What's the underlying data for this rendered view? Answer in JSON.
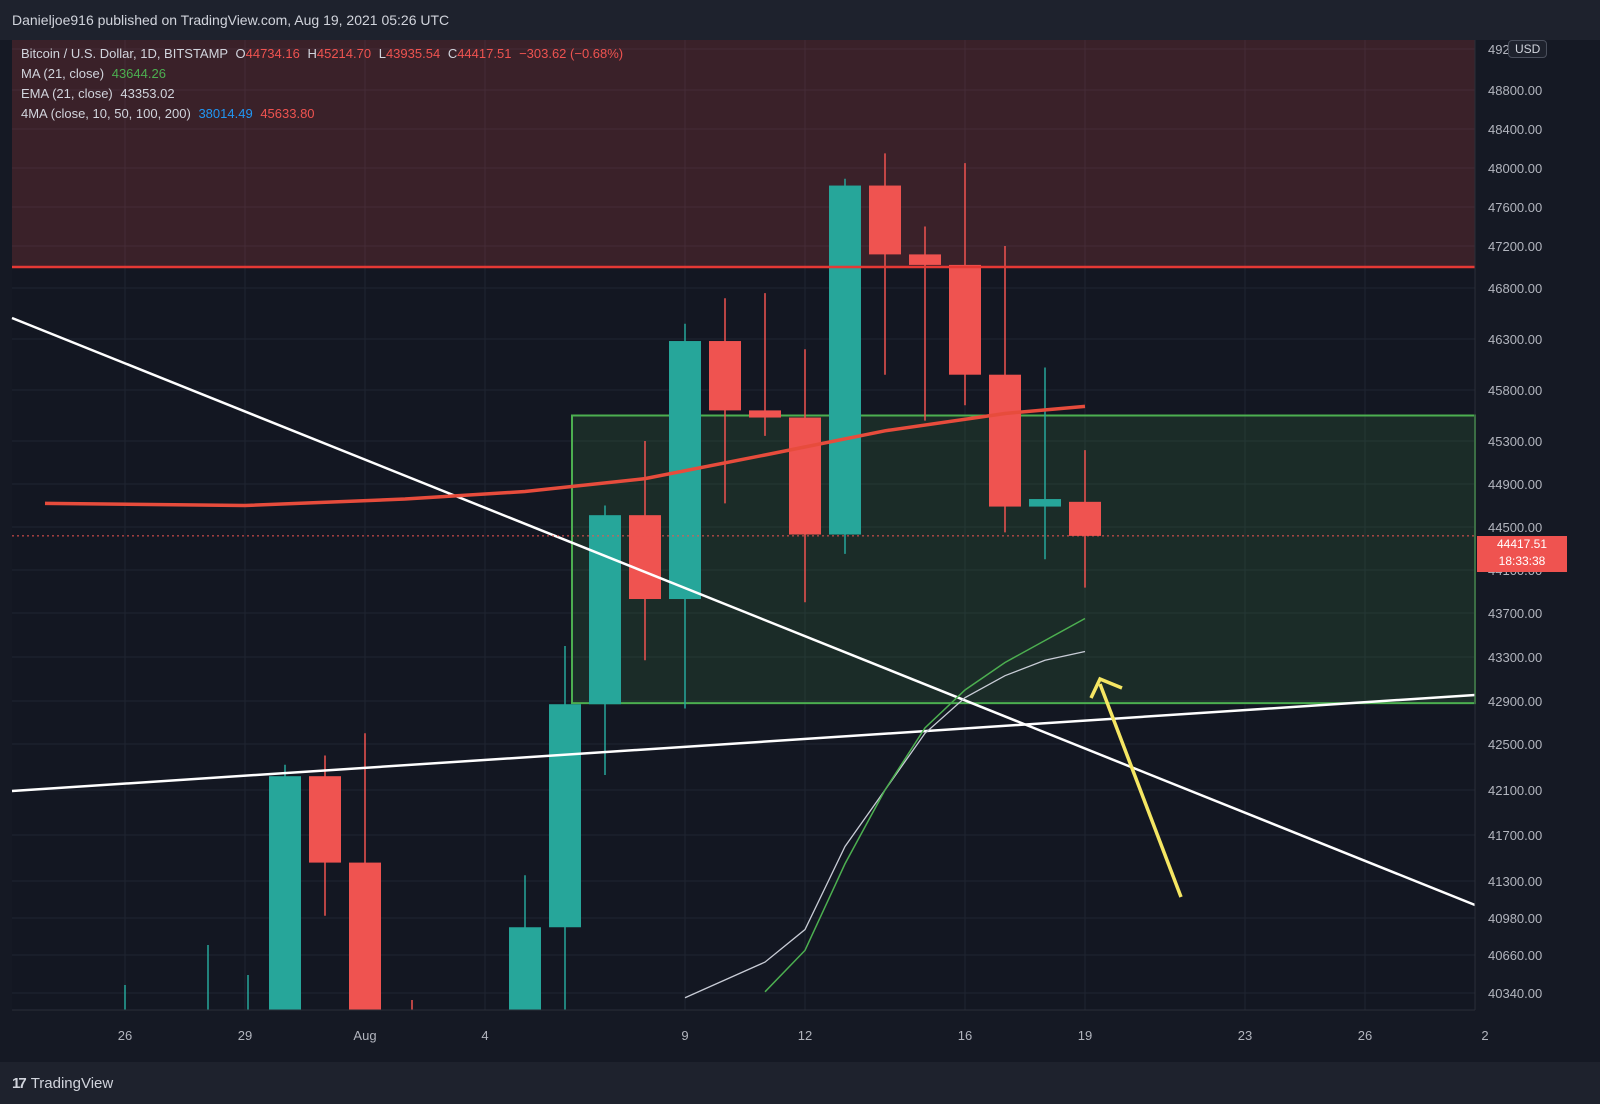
{
  "header": {
    "published_text": "Danieljoe916 published on TradingView.com, Aug 19, 2021 05:26 UTC"
  },
  "legend": {
    "symbol": "Bitcoin / U.S. Dollar, 1D, BITSTAMP",
    "o_label": "O",
    "o_value": "44734.16",
    "h_label": "H",
    "h_value": "45214.70",
    "l_label": "L",
    "l_value": "43935.54",
    "c_label": "C",
    "c_value": "44417.51",
    "change": "−303.62 (−0.68%)",
    "ma_label": "MA (21, close)",
    "ma_value": "43644.26",
    "ema_label": "EMA (21, close)",
    "ema_value": "43353.02",
    "ma4_label": "4MA (close, 10, 50, 100, 200)",
    "ma4_value1": "38014.49",
    "ma4_value2": "45633.80"
  },
  "price_tag": {
    "price": "44417.51",
    "countdown": "18:33:38"
  },
  "currency": "USD",
  "footer": {
    "brand": "TradingView",
    "logo_text": "17"
  },
  "colors": {
    "background": "#151924",
    "up": "#26a69a",
    "down": "#ef5350",
    "resistance": "#e53935",
    "support_box": "#4caf50",
    "ema_line": "#e74c3c",
    "ma_green": "#4caf50",
    "ma_white": "#c8ccd6",
    "arrow": "#f5e663",
    "trendline": "#ffffff"
  },
  "chart_data": {
    "type": "candlestick",
    "x_ticks": [
      "26",
      "29",
      "Aug",
      "4",
      "9",
      "12",
      "16",
      "19",
      "23",
      "26",
      "2"
    ],
    "y_ticks": [
      "49200.00",
      "48800.00",
      "48400.00",
      "48000.00",
      "47600.00",
      "47200.00",
      "46800.00",
      "46300.00",
      "45800.00",
      "45300.00",
      "44900.00",
      "44500.00",
      "44100.00",
      "43700.00",
      "43300.00",
      "42900.00",
      "42500.00",
      "42100.00",
      "41700.00",
      "41300.00",
      "40980.00",
      "40660.00",
      "40340.00"
    ],
    "candles": [
      {
        "date": "Jul 30",
        "o": 39850,
        "h": 42320,
        "l": 38300,
        "c": 42220
      },
      {
        "date": "Jul 31",
        "o": 42220,
        "h": 42400,
        "l": 41000,
        "c": 41460
      },
      {
        "date": "Aug 1",
        "o": 41460,
        "h": 42600,
        "l": 39400,
        "c": 39850
      },
      {
        "date": "Aug 5",
        "o": 39700,
        "h": 41350,
        "l": 37300,
        "c": 40900
      },
      {
        "date": "Aug 6",
        "o": 40900,
        "h": 43400,
        "l": 39850,
        "c": 42870
      },
      {
        "date": "Aug 7",
        "o": 42870,
        "h": 44700,
        "l": 42230,
        "c": 44610
      },
      {
        "date": "Aug 8",
        "o": 44610,
        "h": 45300,
        "l": 43270,
        "c": 43830
      },
      {
        "date": "Aug 9",
        "o": 43830,
        "h": 46450,
        "l": 42830,
        "c": 46280
      },
      {
        "date": "Aug 10",
        "o": 46280,
        "h": 46700,
        "l": 44720,
        "c": 45600
      },
      {
        "date": "Aug 11",
        "o": 45600,
        "h": 46750,
        "l": 45350,
        "c": 45530
      },
      {
        "date": "Aug 12",
        "o": 45530,
        "h": 46200,
        "l": 43800,
        "c": 44430
      },
      {
        "date": "Aug 13",
        "o": 44430,
        "h": 47890,
        "l": 44250,
        "c": 47820
      },
      {
        "date": "Aug 14",
        "o": 47820,
        "h": 48150,
        "l": 45950,
        "c": 47120
      },
      {
        "date": "Aug 15",
        "o": 47120,
        "h": 47400,
        "l": 45500,
        "c": 47020
      },
      {
        "date": "Aug 16",
        "o": 47020,
        "h": 48050,
        "l": 45650,
        "c": 45950
      },
      {
        "date": "Aug 17",
        "o": 45950,
        "h": 47200,
        "l": 44450,
        "c": 44690
      },
      {
        "date": "Aug 18",
        "o": 44690,
        "h": 46020,
        "l": 44200,
        "c": 44760
      },
      {
        "date": "Aug 19",
        "o": 44734.16,
        "h": 45214.7,
        "l": 43935.54,
        "c": 44417.51
      }
    ],
    "resistance_level": 47000,
    "support_zone": [
      42880,
      45550
    ],
    "ema_series": [
      {
        "date": "Jul 24",
        "v": 44720
      },
      {
        "date": "Jul 29",
        "v": 44700
      },
      {
        "date": "Aug 2",
        "v": 44760
      },
      {
        "date": "Aug 5",
        "v": 44830
      },
      {
        "date": "Aug 8",
        "v": 44950
      },
      {
        "date": "Aug 11",
        "v": 45170
      },
      {
        "date": "Aug 14",
        "v": 45400
      },
      {
        "date": "Aug 17",
        "v": 45570
      },
      {
        "date": "Aug 19",
        "v": 45640
      }
    ],
    "ma_green_series": [
      {
        "date": "Aug 11",
        "v": 40350
      },
      {
        "date": "Aug 12",
        "v": 40700
      },
      {
        "date": "Aug 13",
        "v": 41450
      },
      {
        "date": "Aug 14",
        "v": 42100
      },
      {
        "date": "Aug 15",
        "v": 42650
      },
      {
        "date": "Aug 16",
        "v": 43000
      },
      {
        "date": "Aug 17",
        "v": 43250
      },
      {
        "date": "Aug 18",
        "v": 43450
      },
      {
        "date": "Aug 19",
        "v": 43650
      }
    ],
    "ma_white_series": [
      {
        "date": "Aug 9",
        "v": 40300
      },
      {
        "date": "Aug 11",
        "v": 40600
      },
      {
        "date": "Aug 12",
        "v": 40880
      },
      {
        "date": "Aug 13",
        "v": 41600
      },
      {
        "date": "Aug 14",
        "v": 42100
      },
      {
        "date": "Aug 15",
        "v": 42600
      },
      {
        "date": "Aug 16",
        "v": 42930
      },
      {
        "date": "Aug 17",
        "v": 43130
      },
      {
        "date": "Aug 18",
        "v": 43270
      },
      {
        "date": "Aug 19",
        "v": 43350
      }
    ]
  }
}
